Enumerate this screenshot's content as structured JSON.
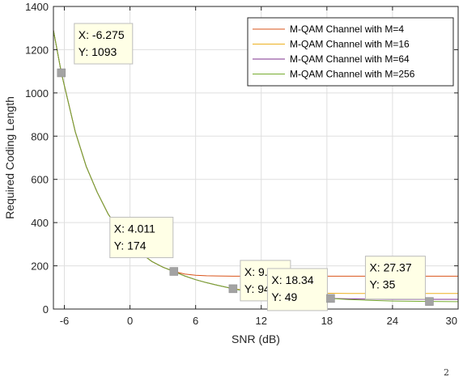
{
  "chart_data": {
    "type": "line",
    "xlabel": "SNR (dB)",
    "ylabel": "Required Coding Length",
    "xlim": [
      -7,
      30
    ],
    "ylim": [
      0,
      1400
    ],
    "xticks": [
      -6,
      0,
      6,
      12,
      18,
      24,
      30
    ],
    "yticks": [
      0,
      200,
      400,
      600,
      800,
      1000,
      1200,
      1400
    ],
    "grid": true,
    "legend_position": "top-right",
    "x": [
      -7,
      -6.275,
      -5,
      -4,
      -3,
      -2,
      -1,
      0,
      1,
      2,
      3,
      4.011,
      5,
      6,
      7,
      8,
      9.42,
      10,
      12,
      14,
      16,
      18.34,
      20,
      22,
      24,
      27.37,
      30
    ],
    "series": [
      {
        "name": "M-QAM Channel with M=4",
        "color": "#d95319",
        "values": [
          1290,
          1093,
          820,
          660,
          540,
          440,
          365,
          305,
          258,
          220,
          194,
          174,
          162,
          156,
          154,
          153,
          152,
          152,
          152,
          152,
          152,
          152,
          152,
          152,
          152,
          152,
          152
        ]
      },
      {
        "name": "M-QAM Channel with M=16",
        "color": "#edb120",
        "values": [
          1290,
          1093,
          820,
          660,
          540,
          440,
          365,
          305,
          258,
          220,
          194,
          174,
          153,
          136,
          122,
          110,
          94,
          91,
          83,
          78,
          75,
          73,
          72,
          72,
          72,
          72,
          72
        ]
      },
      {
        "name": "M-QAM Channel with M=64",
        "color": "#7e2f8e",
        "values": [
          1290,
          1093,
          820,
          660,
          540,
          440,
          365,
          305,
          258,
          220,
          194,
          174,
          153,
          136,
          122,
          110,
          94,
          88,
          73,
          62,
          54,
          49,
          47,
          46,
          45,
          45,
          45
        ]
      },
      {
        "name": "M-QAM Channel with M=256",
        "color": "#77ac30",
        "values": [
          1290,
          1093,
          820,
          660,
          540,
          440,
          365,
          305,
          258,
          220,
          194,
          174,
          153,
          136,
          122,
          110,
          94,
          88,
          73,
          62,
          54,
          49,
          44,
          40,
          37,
          35,
          34
        ]
      }
    ],
    "datatips": [
      {
        "x": -6.275,
        "y": 1093,
        "x_text": "X: -6.275",
        "y_text": "Y: 1093"
      },
      {
        "x": 4.011,
        "y": 174,
        "x_text": "X: 4.011",
        "y_text": "Y: 174"
      },
      {
        "x": 9.42,
        "y": 94,
        "x_text": "X: 9.42",
        "y_text": "Y: 94"
      },
      {
        "x": 18.34,
        "y": 49,
        "x_text": "X: 18.34",
        "y_text": "Y: 49"
      },
      {
        "x": 27.37,
        "y": 35,
        "x_text": "X: 27.37",
        "y_text": "Y: 35"
      }
    ]
  },
  "corner_mark": "2"
}
